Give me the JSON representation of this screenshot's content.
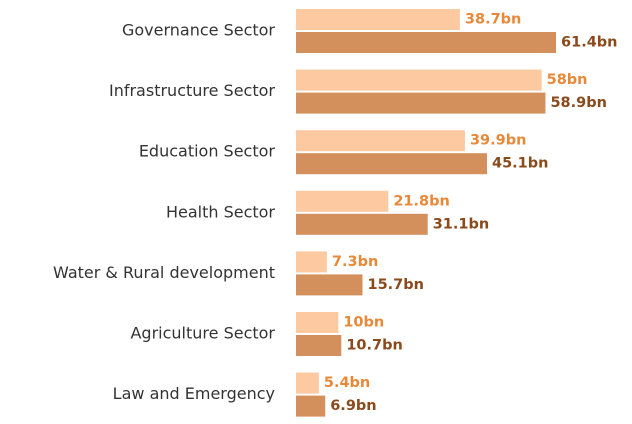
{
  "chart_data": {
    "type": "bar",
    "orientation": "horizontal",
    "categories": [
      "Governance Sector",
      "Infrastructure Sector",
      "Education Sector",
      "Health Sector",
      "Water & Rural development",
      "Agriculture Sector",
      "Law and Emergency"
    ],
    "series": [
      {
        "color": "#fdc9a1",
        "label_color": "#e8893a",
        "values": [
          38.7,
          58,
          39.9,
          21.8,
          7.3,
          10,
          5.4
        ],
        "value_labels": [
          "38.7bn",
          "58bn",
          "39.9bn",
          "21.8bn",
          "7.3bn",
          "10bn",
          "5.4bn"
        ]
      },
      {
        "color": "#d4905c",
        "label_color": "#8a4a1c",
        "values": [
          61.4,
          58.9,
          45.1,
          31.1,
          15.7,
          10.7,
          6.9
        ],
        "value_labels": [
          "61.4bn",
          "58.9bn",
          "45.1bn",
          "31.1bn",
          "15.7bn",
          "10.7bn",
          "6.9bn"
        ]
      }
    ]
  }
}
